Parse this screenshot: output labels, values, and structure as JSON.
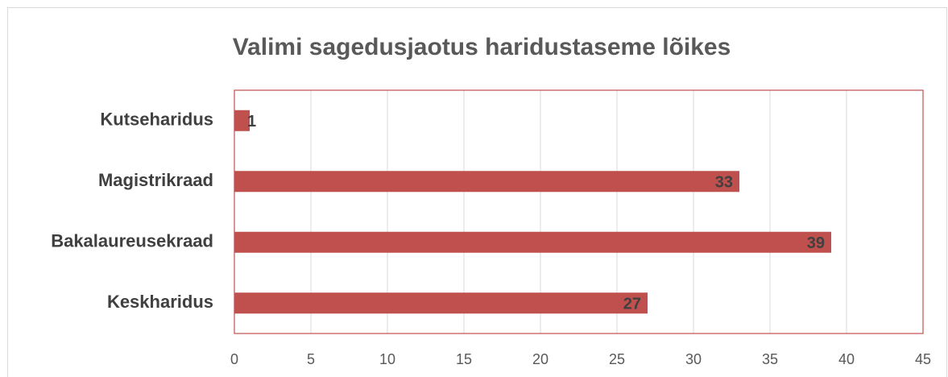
{
  "chart_data": {
    "type": "bar",
    "orientation": "horizontal",
    "title": "Valimi sagedusjaotus haridustaseme lõikes",
    "categories": [
      "Kutseharidus",
      "Magistrikraad",
      "Bakalaureusekraad",
      "Keskharidus"
    ],
    "values": [
      1,
      33,
      39,
      27
    ],
    "color": "#c0504d",
    "xlim": [
      0,
      45
    ],
    "xticks": [
      0,
      5,
      10,
      15,
      20,
      25,
      30,
      35,
      40,
      45
    ],
    "grid": true
  }
}
